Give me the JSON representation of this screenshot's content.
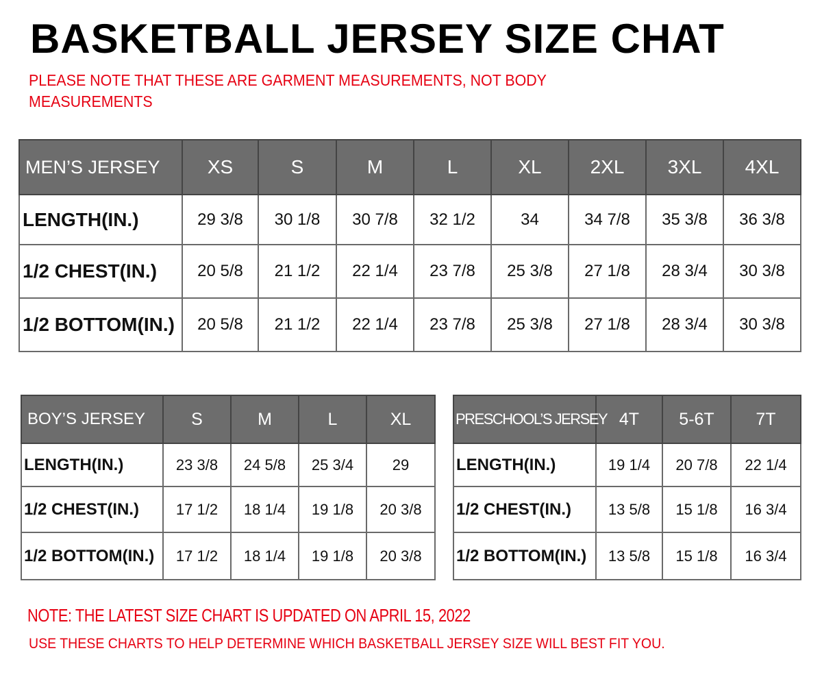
{
  "title": "BASKETBALL JERSEY SIZE CHAT",
  "subtitle_line1": "PLEASE NOTE THAT THESE ARE GARMENT MEASUREMENTS, NOT BODY",
  "subtitle_line2": "MEASUREMENTS",
  "colors": {
    "header_bg": "#6d6d6d",
    "note_red": "#e60012"
  },
  "tables": {
    "men": {
      "header": [
        "MEN’S JERSEY",
        "XS",
        "S",
        "M",
        "L",
        "XL",
        "2XL",
        "3XL",
        "4XL"
      ],
      "rows": [
        [
          "LENGTH(IN.)",
          "29  3/8",
          "30  1/8",
          "30  7/8",
          "32  1/2",
          "34",
          "34  7/8",
          "35  3/8",
          "36  3/8"
        ],
        [
          "1/2  CHEST(IN.)",
          "20  5/8",
          "21  1/2",
          "22  1/4",
          "23  7/8",
          "25  3/8",
          "27  1/8",
          "28  3/4",
          "30  3/8"
        ],
        [
          "1/2  BOTTOM(IN.)",
          "20  5/8",
          "21  1/2",
          "22  1/4",
          "23  7/8",
          "25  3/8",
          "27  1/8",
          "28  3/4",
          "30  3/8"
        ]
      ]
    },
    "boy": {
      "header": [
        "BOY’S JERSEY",
        "S",
        "M",
        "L",
        "XL"
      ],
      "rows": [
        [
          "LENGTH(IN.)",
          "23  3/8",
          "24  5/8",
          "25  3/4",
          "29"
        ],
        [
          "1/2  CHEST(IN.)",
          "17  1/2",
          "18  1/4",
          "19  1/8",
          "20  3/8"
        ],
        [
          "1/2  BOTTOM(IN.)",
          "17  1/2",
          "18  1/4",
          "19  1/8",
          "20  3/8"
        ]
      ]
    },
    "pre": {
      "header": [
        "PRESCHOOL’S JERSEY",
        "4T",
        "5-6T",
        "7T"
      ],
      "rows": [
        [
          "LENGTH(IN.)",
          "19  1/4",
          "20  7/8",
          "22  1/4"
        ],
        [
          "1/2  CHEST(IN.)",
          "13  5/8",
          "15  1/8",
          "16  3/4"
        ],
        [
          "1/2  BOTTOM(IN.)",
          "13  5/8",
          "15  1/8",
          "16  3/4"
        ]
      ]
    }
  },
  "note_line1": "NOTE: THE LATEST SIZE CHART IS UPDATED ON APRIL 15, 2022",
  "note_line2": "USE THESE CHARTS TO HELP DETERMINE WHICH  BASKETBALL JERSEY  SIZE WILL BEST FIT YOU."
}
